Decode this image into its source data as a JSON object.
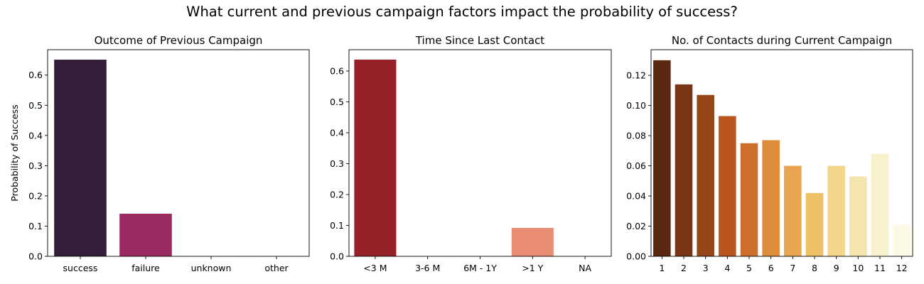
{
  "suptitle": "What current and previous campaign factors impact the probability of success?",
  "chart_data": [
    {
      "type": "bar",
      "title": "Outcome of Previous Campaign",
      "ylabel": "Probability of Success",
      "xlabel": "",
      "categories": [
        "success",
        "failure",
        "unknown",
        "other"
      ],
      "values": [
        0.651,
        0.141,
        0.0,
        0.0
      ],
      "ylim": [
        0,
        0.684
      ],
      "yticks": [
        0.0,
        0.1,
        0.2,
        0.3,
        0.4,
        0.5,
        0.6
      ],
      "ytick_labels": [
        "0.0",
        "0.1",
        "0.2",
        "0.3",
        "0.4",
        "0.5",
        "0.6"
      ],
      "colors": [
        "#351e39",
        "#9a2a60",
        "#cc3a57",
        "#e8634d"
      ]
    },
    {
      "type": "bar",
      "title": "Time Since Last Contact",
      "ylabel": "",
      "xlabel": "",
      "categories": [
        "<3 M",
        "3-6 M",
        "6M - 1Y",
        ">1 Y",
        "NA"
      ],
      "values": [
        0.637,
        0.0,
        0.0,
        0.092,
        0.0
      ],
      "ylim": [
        0,
        0.669
      ],
      "yticks": [
        0.0,
        0.1,
        0.2,
        0.3,
        0.4,
        0.5,
        0.6
      ],
      "ytick_labels": [
        "0.0",
        "0.1",
        "0.2",
        "0.3",
        "0.4",
        "0.5",
        "0.6"
      ],
      "colors": [
        "#972128",
        "#c2342c",
        "#de5b43",
        "#e98c74",
        "#f3bfae"
      ]
    },
    {
      "type": "bar",
      "title": "No. of Contacts during Current Campaign",
      "ylabel": "",
      "xlabel": "",
      "categories": [
        "1",
        "2",
        "3",
        "4",
        "5",
        "6",
        "7",
        "8",
        "9",
        "10",
        "11",
        "12"
      ],
      "values": [
        0.13,
        0.114,
        0.107,
        0.093,
        0.075,
        0.077,
        0.06,
        0.042,
        0.06,
        0.053,
        0.068,
        0.021
      ],
      "ylim": [
        0,
        0.137
      ],
      "yticks": [
        0.0,
        0.02,
        0.04,
        0.06,
        0.08,
        0.1,
        0.12
      ],
      "ytick_labels": [
        "0.00",
        "0.02",
        "0.04",
        "0.06",
        "0.08",
        "0.10",
        "0.12"
      ],
      "colors": [
        "#5b2811",
        "#7b3415",
        "#964516",
        "#b8571d",
        "#cf6f2e",
        "#df8b3c",
        "#e8a44f",
        "#eec066",
        "#f2d48b",
        "#f4e4ad",
        "#f8f1cc",
        "#fcf8e6"
      ]
    }
  ]
}
